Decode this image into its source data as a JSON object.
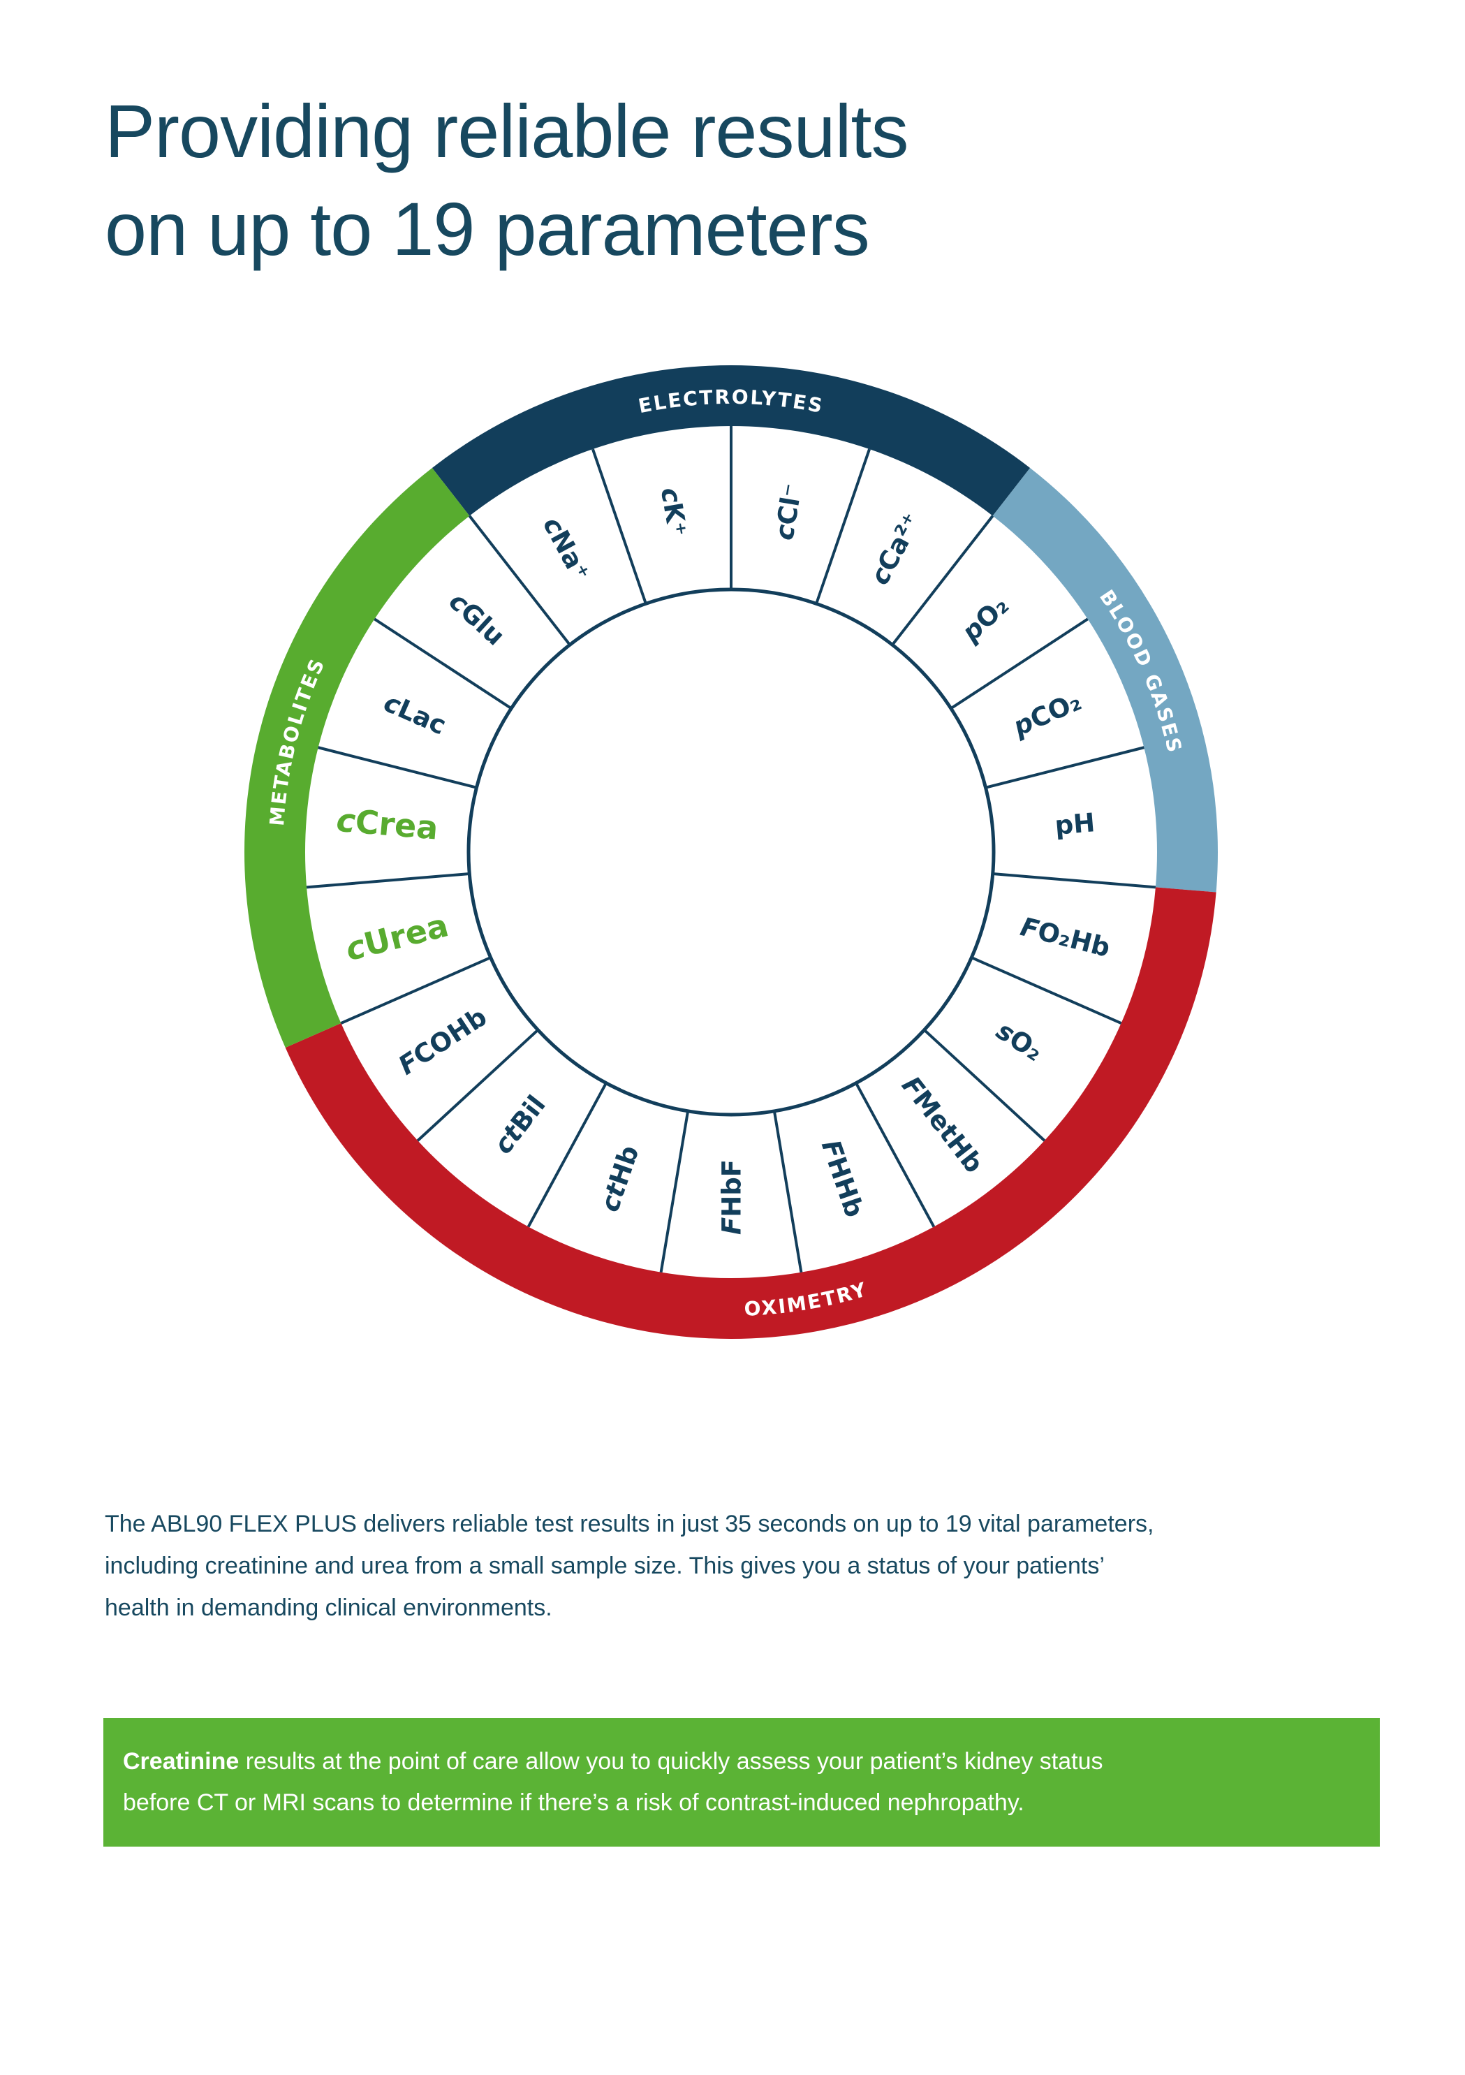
{
  "page": {
    "heading_color": "#17485f",
    "body_color": "#17485f",
    "background": "#ffffff"
  },
  "title": {
    "line1": "Providing reliable results",
    "line2": "on up to 19 parameters"
  },
  "wheel": {
    "parameter_count": 19,
    "colors": {
      "navy": "#123e5b",
      "blue": "#74a7c2",
      "red": "#c01a24",
      "green": "#58ac2f",
      "label": "#123e5b",
      "highlight": "#58ab2f",
      "arc_text": "#ffffff"
    },
    "categories": [
      {
        "name": "ELECTROLYTES",
        "color": "#123e5b",
        "start_index": 17,
        "count": 4,
        "flip": false
      },
      {
        "name": "BLOOD GASES",
        "color": "#74a7c2",
        "start_index": 2,
        "count": 3,
        "flip": false
      },
      {
        "name": "OXIMETRY",
        "color": "#c01a24",
        "start_index": 5,
        "count": 8,
        "flip": true
      },
      {
        "name": "METABOLITES",
        "color": "#58ac2f",
        "start_index": 13,
        "count": 4,
        "flip": false
      }
    ],
    "parameters": [
      {
        "prefix": "c",
        "name": "Cl⁻",
        "category": "ELECTROLYTES",
        "highlight": false
      },
      {
        "prefix": "c",
        "name": "Ca²⁺",
        "category": "ELECTROLYTES",
        "highlight": false
      },
      {
        "prefix": "p",
        "name": "O₂",
        "category": "BLOOD GASES",
        "highlight": false
      },
      {
        "prefix": "p",
        "name": "CO₂",
        "category": "BLOOD GASES",
        "highlight": false
      },
      {
        "prefix": "",
        "name": "pH",
        "category": "BLOOD GASES",
        "highlight": false
      },
      {
        "prefix": "F",
        "name": "O₂Hb",
        "category": "OXIMETRY",
        "highlight": false
      },
      {
        "prefix": "s",
        "name": "O₂",
        "category": "OXIMETRY",
        "highlight": false
      },
      {
        "prefix": "F",
        "name": "MetHb",
        "category": "OXIMETRY",
        "highlight": false
      },
      {
        "prefix": "F",
        "name": "HHb",
        "category": "OXIMETRY",
        "highlight": false
      },
      {
        "prefix": "F",
        "name": "HbF",
        "category": "OXIMETRY",
        "highlight": false
      },
      {
        "prefix": "ct",
        "name": "Hb",
        "category": "OXIMETRY",
        "highlight": false
      },
      {
        "prefix": "ct",
        "name": "Bil",
        "category": "OXIMETRY",
        "highlight": false
      },
      {
        "prefix": "F",
        "name": "COHb",
        "category": "OXIMETRY",
        "highlight": false
      },
      {
        "prefix": "c",
        "name": "Urea",
        "category": "METABOLITES",
        "highlight": true
      },
      {
        "prefix": "c",
        "name": "Crea",
        "category": "METABOLITES",
        "highlight": true
      },
      {
        "prefix": "c",
        "name": "Lac",
        "category": "METABOLITES",
        "highlight": false
      },
      {
        "prefix": "c",
        "name": "Glu",
        "category": "METABOLITES",
        "highlight": false
      },
      {
        "prefix": "c",
        "name": "Na⁺",
        "category": "ELECTROLYTES",
        "highlight": false
      },
      {
        "prefix": "c",
        "name": "K⁺",
        "category": "ELECTROLYTES",
        "highlight": false
      }
    ]
  },
  "intro": {
    "text": "The ABL90 FLEX PLUS delivers reliable test results in just 35 seconds on up to 19 vital parameters,\nincluding creatinine and urea from a small sample size. This gives you a status of your patients’\nhealth in demanding clinical environments."
  },
  "callout": {
    "bg": "#5bb335",
    "lead": "Creatinine",
    "text": " results at the point of care allow you to quickly assess your patient’s kidney status\nbefore CT or MRI scans to determine if there’s a risk of contrast-induced nephropathy."
  }
}
